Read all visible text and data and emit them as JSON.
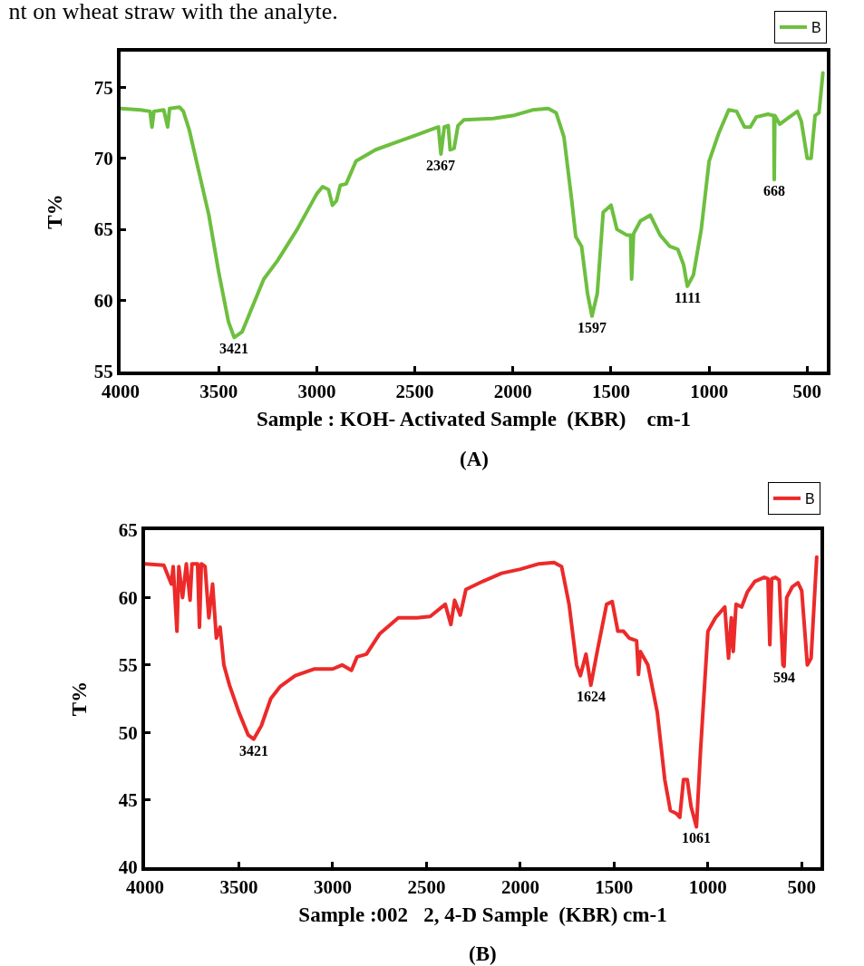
{
  "chart_data": [
    {
      "type": "line",
      "title": "nt on wheat straw with the analyte.",
      "xlabel": "Sample : KOH- Activated Sample  (KBR)    cm-1",
      "ylabel": "T%",
      "xlim": [
        4000,
        400
      ],
      "xticks": [
        4000,
        3500,
        3000,
        2500,
        2000,
        1500,
        1000,
        500
      ],
      "ylim": [
        55,
        77.5
      ],
      "yticks": [
        55,
        60,
        65,
        70,
        75
      ],
      "grid": false,
      "legend": "top right",
      "marker": "none",
      "line_style": "solid",
      "annotations": [
        {
          "text": "3421",
          "x": 3421,
          "y": 57.4
        },
        {
          "text": "2367",
          "x": 2367,
          "y": 70.3
        },
        {
          "text": "1597",
          "x": 1597,
          "y": 58.9
        },
        {
          "text": "1111",
          "x": 1111,
          "y": 61
        },
        {
          "text": "668",
          "x": 668,
          "y": 68.5
        },
        "(A)"
      ],
      "x": [
        4000,
        3900,
        3850,
        3840,
        3830,
        3780,
        3760,
        3750,
        3700,
        3680,
        3650,
        3600,
        3550,
        3500,
        3450,
        3421,
        3380,
        3330,
        3270,
        3200,
        3100,
        3000,
        2970,
        2940,
        2920,
        2900,
        2880,
        2850,
        2800,
        2700,
        2600,
        2500,
        2400,
        2380,
        2367,
        2350,
        2330,
        2320,
        2300,
        2280,
        2250,
        2100,
        2000,
        1900,
        1820,
        1780,
        1740,
        1700,
        1680,
        1650,
        1620,
        1597,
        1570,
        1540,
        1500,
        1470,
        1420,
        1400,
        1395,
        1385,
        1350,
        1300,
        1250,
        1200,
        1160,
        1130,
        1111,
        1080,
        1040,
        1000,
        950,
        900,
        860,
        820,
        790,
        760,
        700,
        670,
        668,
        665,
        640,
        600,
        550,
        530,
        500,
        480,
        460,
        440,
        420
      ],
      "series": [
        {
          "name": "B",
          "color": "#6dbf3f",
          "values": [
            73.5,
            73.4,
            73.3,
            72.2,
            73.3,
            73.4,
            72.2,
            73.5,
            73.6,
            73.3,
            72,
            69,
            66,
            62,
            58.5,
            57.4,
            57.8,
            59.5,
            61.5,
            62.8,
            65,
            67.5,
            68,
            67.8,
            66.7,
            67,
            68.1,
            68.2,
            69.8,
            70.6,
            71.1,
            71.6,
            72.1,
            72.2,
            70.3,
            72.2,
            72.3,
            70.6,
            70.7,
            72.3,
            72.7,
            72.8,
            73,
            73.4,
            73.5,
            73.2,
            71.5,
            67,
            64.5,
            63.8,
            60.5,
            58.9,
            60.5,
            66.2,
            66.7,
            65,
            64.6,
            64.6,
            61.5,
            64.7,
            65.6,
            66,
            64.6,
            63.8,
            63.6,
            62.5,
            61,
            61.8,
            65,
            69.8,
            71.8,
            73.4,
            73.3,
            72.2,
            72.2,
            72.9,
            73.1,
            73,
            68.5,
            73,
            72.4,
            72.8,
            73.3,
            72.6,
            70,
            70,
            73,
            73.2,
            76
          ]
        }
      ]
    },
    {
      "type": "line",
      "xlabel": "Sample :002   2, 4-D Sample  (KBR) cm-1",
      "ylabel": "T%",
      "xlim": [
        4000,
        400
      ],
      "xticks": [
        4000,
        3500,
        3000,
        2500,
        2000,
        1500,
        1000,
        500
      ],
      "ylim": [
        40,
        65
      ],
      "yticks": [
        40,
        45,
        50,
        55,
        60,
        65
      ],
      "grid": false,
      "legend": "top right",
      "marker": "none",
      "line_style": "solid",
      "annotations": [
        {
          "text": "3421",
          "x": 3421,
          "y": 49.5
        },
        {
          "text": "1624",
          "x": 1624,
          "y": 53.5
        },
        {
          "text": "1061",
          "x": 1061,
          "y": 43
        },
        {
          "text": "594",
          "x": 594,
          "y": 54.9
        },
        "(B)"
      ],
      "x": [
        4000,
        3900,
        3860,
        3850,
        3830,
        3820,
        3800,
        3780,
        3760,
        3750,
        3720,
        3710,
        3700,
        3680,
        3660,
        3640,
        3620,
        3600,
        3580,
        3550,
        3500,
        3450,
        3421,
        3380,
        3330,
        3280,
        3200,
        3100,
        3000,
        2950,
        2900,
        2870,
        2820,
        2750,
        2650,
        2550,
        2480,
        2400,
        2370,
        2350,
        2320,
        2290,
        2200,
        2100,
        2000,
        1900,
        1820,
        1780,
        1740,
        1700,
        1680,
        1650,
        1624,
        1590,
        1540,
        1510,
        1480,
        1450,
        1420,
        1380,
        1370,
        1360,
        1320,
        1270,
        1230,
        1200,
        1170,
        1150,
        1130,
        1110,
        1090,
        1061,
        1040,
        1000,
        960,
        910,
        890,
        875,
        865,
        850,
        820,
        790,
        750,
        700,
        680,
        670,
        660,
        640,
        620,
        600,
        594,
        580,
        550,
        520,
        500,
        470,
        450,
        440,
        420
      ],
      "series": [
        {
          "name": "B",
          "color": "#ec2a2a",
          "values": [
            62.5,
            62.4,
            61,
            62.3,
            57.5,
            62.3,
            60,
            62.5,
            59.8,
            62.5,
            62.5,
            57.8,
            62.5,
            62.3,
            58.5,
            61,
            57,
            57.8,
            55,
            53.5,
            51.5,
            49.8,
            49.5,
            50.5,
            52.5,
            53.4,
            54.2,
            54.7,
            54.7,
            55,
            54.6,
            55.6,
            55.8,
            57.3,
            58.5,
            58.5,
            58.6,
            59.5,
            58,
            59.8,
            58.7,
            60.6,
            61.2,
            61.8,
            62.1,
            62.5,
            62.6,
            62.3,
            59.5,
            55,
            54.2,
            55.8,
            53.5,
            56,
            59.5,
            59.7,
            57.5,
            57.5,
            57,
            56.8,
            54.3,
            56,
            55,
            51.5,
            46.5,
            44.2,
            44,
            43.7,
            46.5,
            46.5,
            44.5,
            43,
            48.5,
            57.5,
            58.5,
            59.3,
            55.5,
            58.5,
            56,
            59.5,
            59.3,
            60.4,
            61.2,
            61.5,
            61.4,
            56.5,
            61.4,
            61.5,
            61.3,
            55,
            54.9,
            60,
            60.8,
            61.1,
            60.5,
            55,
            55.5,
            58,
            63
          ]
        }
      ]
    }
  ]
}
